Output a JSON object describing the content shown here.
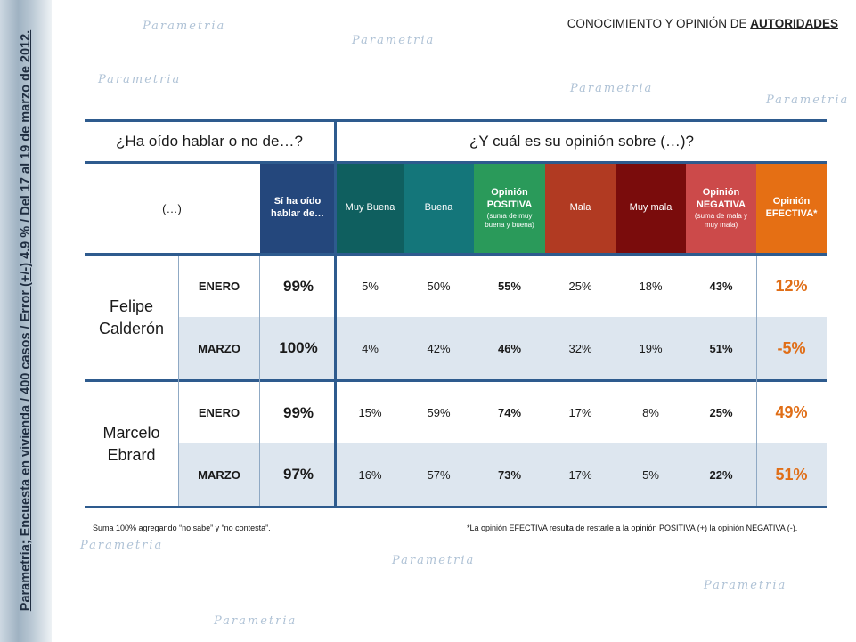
{
  "side_caption": "Parametría; Encuesta en vivienda / 400 casos / Error (+/-) 4.9 % /  Del 17 al 19 de marzo de 2012.",
  "header": {
    "prefix": "CONOCIMIENTO Y OPINIÓN DE ",
    "emph": "AUTORIDADES"
  },
  "watermark": "Parametria",
  "questions": {
    "left": "¿Ha oído hablar o no de…?",
    "right": "¿Y cuál es su opinión sobre (…)?"
  },
  "colors": {
    "heard": "#24477c",
    "muy_buena": "#0f5f5f",
    "buena": "#14767a",
    "positiva": "#2a9a5a",
    "mala": "#b13a22",
    "muy_mala": "#7a0c0c",
    "negativa": "#cc4a4a",
    "efectiva": "#e56f14",
    "accent_value": "#e06e17",
    "rule": "#2e5b8e"
  },
  "columns": {
    "subject": "(…)",
    "heard": "Sí ha oído hablar de…",
    "muy_buena": "Muy Buena",
    "buena": "Buena",
    "positiva_title": "Opinión",
    "positiva_word": "POSITIVA",
    "positiva_note": "(suma de muy buena y buena)",
    "mala": "Mala",
    "muy_mala": "Muy mala",
    "negativa_title": "Opinión",
    "negativa_word": "NEGATIVA",
    "negativa_note": "(suma de mala y muy mala)",
    "efectiva": "Opinión EFECTIVA*"
  },
  "people": [
    {
      "name": "Felipe Calderón",
      "rows": [
        {
          "month": "ENERO",
          "heard": "99%",
          "muy_buena": "5%",
          "buena": "50%",
          "positiva": "55%",
          "mala": "25%",
          "muy_mala": "18%",
          "negativa": "43%",
          "efectiva": "12%"
        },
        {
          "month": "MARZO",
          "heard": "100%",
          "muy_buena": "4%",
          "buena": "42%",
          "positiva": "46%",
          "mala": "32%",
          "muy_mala": "19%",
          "negativa": "51%",
          "efectiva": "-5%"
        }
      ]
    },
    {
      "name": "Marcelo Ebrard",
      "rows": [
        {
          "month": "ENERO",
          "heard": "99%",
          "muy_buena": "15%",
          "buena": "59%",
          "positiva": "74%",
          "mala": "17%",
          "muy_mala": "8%",
          "negativa": "25%",
          "efectiva": "49%"
        },
        {
          "month": "MARZO",
          "heard": "97%",
          "muy_buena": "16%",
          "buena": "57%",
          "positiva": "73%",
          "mala": "17%",
          "muy_mala": "5%",
          "negativa": "22%",
          "efectiva": "51%"
        }
      ]
    }
  ],
  "footnotes": {
    "left": "Suma 100%  agregando “no sabe” y “no contesta”.",
    "right": "*La opinión EFECTIVA resulta de restarle a la opinión POSITIVA (+) la opinión NEGATIVA (-)."
  }
}
